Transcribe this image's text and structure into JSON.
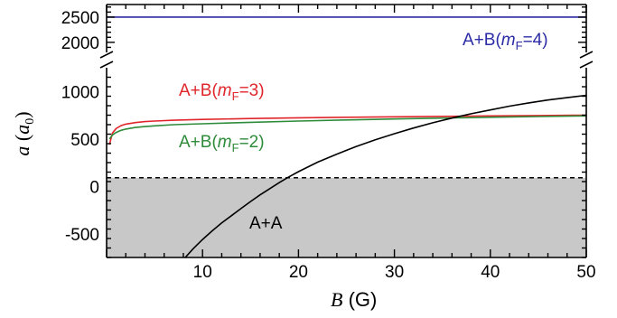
{
  "chart_data": {
    "type": "line",
    "xlabel": {
      "var": "B",
      "unit": " (G)"
    },
    "ylabel": {
      "var": "a",
      "paren_open": " (",
      "unit_var": "a",
      "unit_sub": "0",
      "paren_close": ")"
    },
    "xlim": [
      0,
      50
    ],
    "xticks": [
      "10",
      "20",
      "30",
      "40",
      "50"
    ],
    "xtick_values": [
      10,
      20,
      30,
      40,
      50
    ],
    "y_axis_break": true,
    "upper_panel": {
      "ylim": [
        1800,
        2750
      ],
      "yticks": [
        "2500",
        "2000"
      ],
      "ytick_values": [
        2500,
        2000
      ]
    },
    "lower_panel": {
      "ylim": [
        -750,
        1250
      ],
      "yticks": [
        "1000",
        "500",
        "0",
        "-500"
      ],
      "ytick_values": [
        1000,
        500,
        0,
        -500
      ]
    },
    "shaded_region": {
      "label": "A+A",
      "color": "#c8c8c8",
      "ymax": 90
    },
    "dashed_line_y": 90,
    "series": [
      {
        "name": "A+B(mF=4)",
        "label": {
          "pre": "A+B(",
          "var": "m",
          "sub": "F",
          "post": "=4)"
        },
        "color": "#2b2ba6",
        "x": [
          0,
          50
        ],
        "y": [
          2500,
          2500
        ]
      },
      {
        "name": "A+B(mF=3)",
        "label": {
          "pre": "A+B(",
          "var": "m",
          "sub": "F",
          "post": "=3)"
        },
        "color": "#e0262b",
        "x": [
          0.3,
          0.6,
          1,
          1.5,
          2,
          3,
          4,
          5,
          7,
          10,
          15,
          20,
          25,
          30,
          35,
          40,
          45,
          50
        ],
        "y": [
          440,
          560,
          610,
          640,
          656,
          672,
          682,
          688,
          697,
          705,
          715,
          722,
          728,
          733,
          738,
          742,
          746,
          750
        ]
      },
      {
        "name": "A+B(mF=2)",
        "label": {
          "pre": "A+B(",
          "var": "m",
          "sub": "F",
          "post": "=2)"
        },
        "color": "#2e8b3a",
        "x": [
          0.3,
          0.6,
          1,
          1.5,
          2,
          3,
          4,
          5,
          7,
          10,
          15,
          20,
          25,
          30,
          35,
          40,
          45,
          50
        ],
        "y": [
          500,
          540,
          568,
          590,
          603,
          620,
          630,
          638,
          650,
          660,
          675,
          688,
          700,
          710,
          720,
          728,
          736,
          742
        ]
      },
      {
        "name": "A+A",
        "color": "#000000",
        "x": [
          8.2,
          9,
          10,
          11,
          12,
          13,
          14,
          15,
          16,
          17,
          18,
          19,
          20,
          22,
          24,
          26,
          28,
          30,
          32,
          34,
          36,
          38,
          40,
          42,
          44,
          46,
          48,
          50
        ],
        "y": [
          -750,
          -660,
          -560,
          -470,
          -385,
          -310,
          -235,
          -160,
          -90,
          -25,
          40,
          100,
          155,
          255,
          340,
          420,
          490,
          555,
          615,
          670,
          720,
          765,
          805,
          845,
          880,
          910,
          935,
          960
        ]
      }
    ]
  }
}
